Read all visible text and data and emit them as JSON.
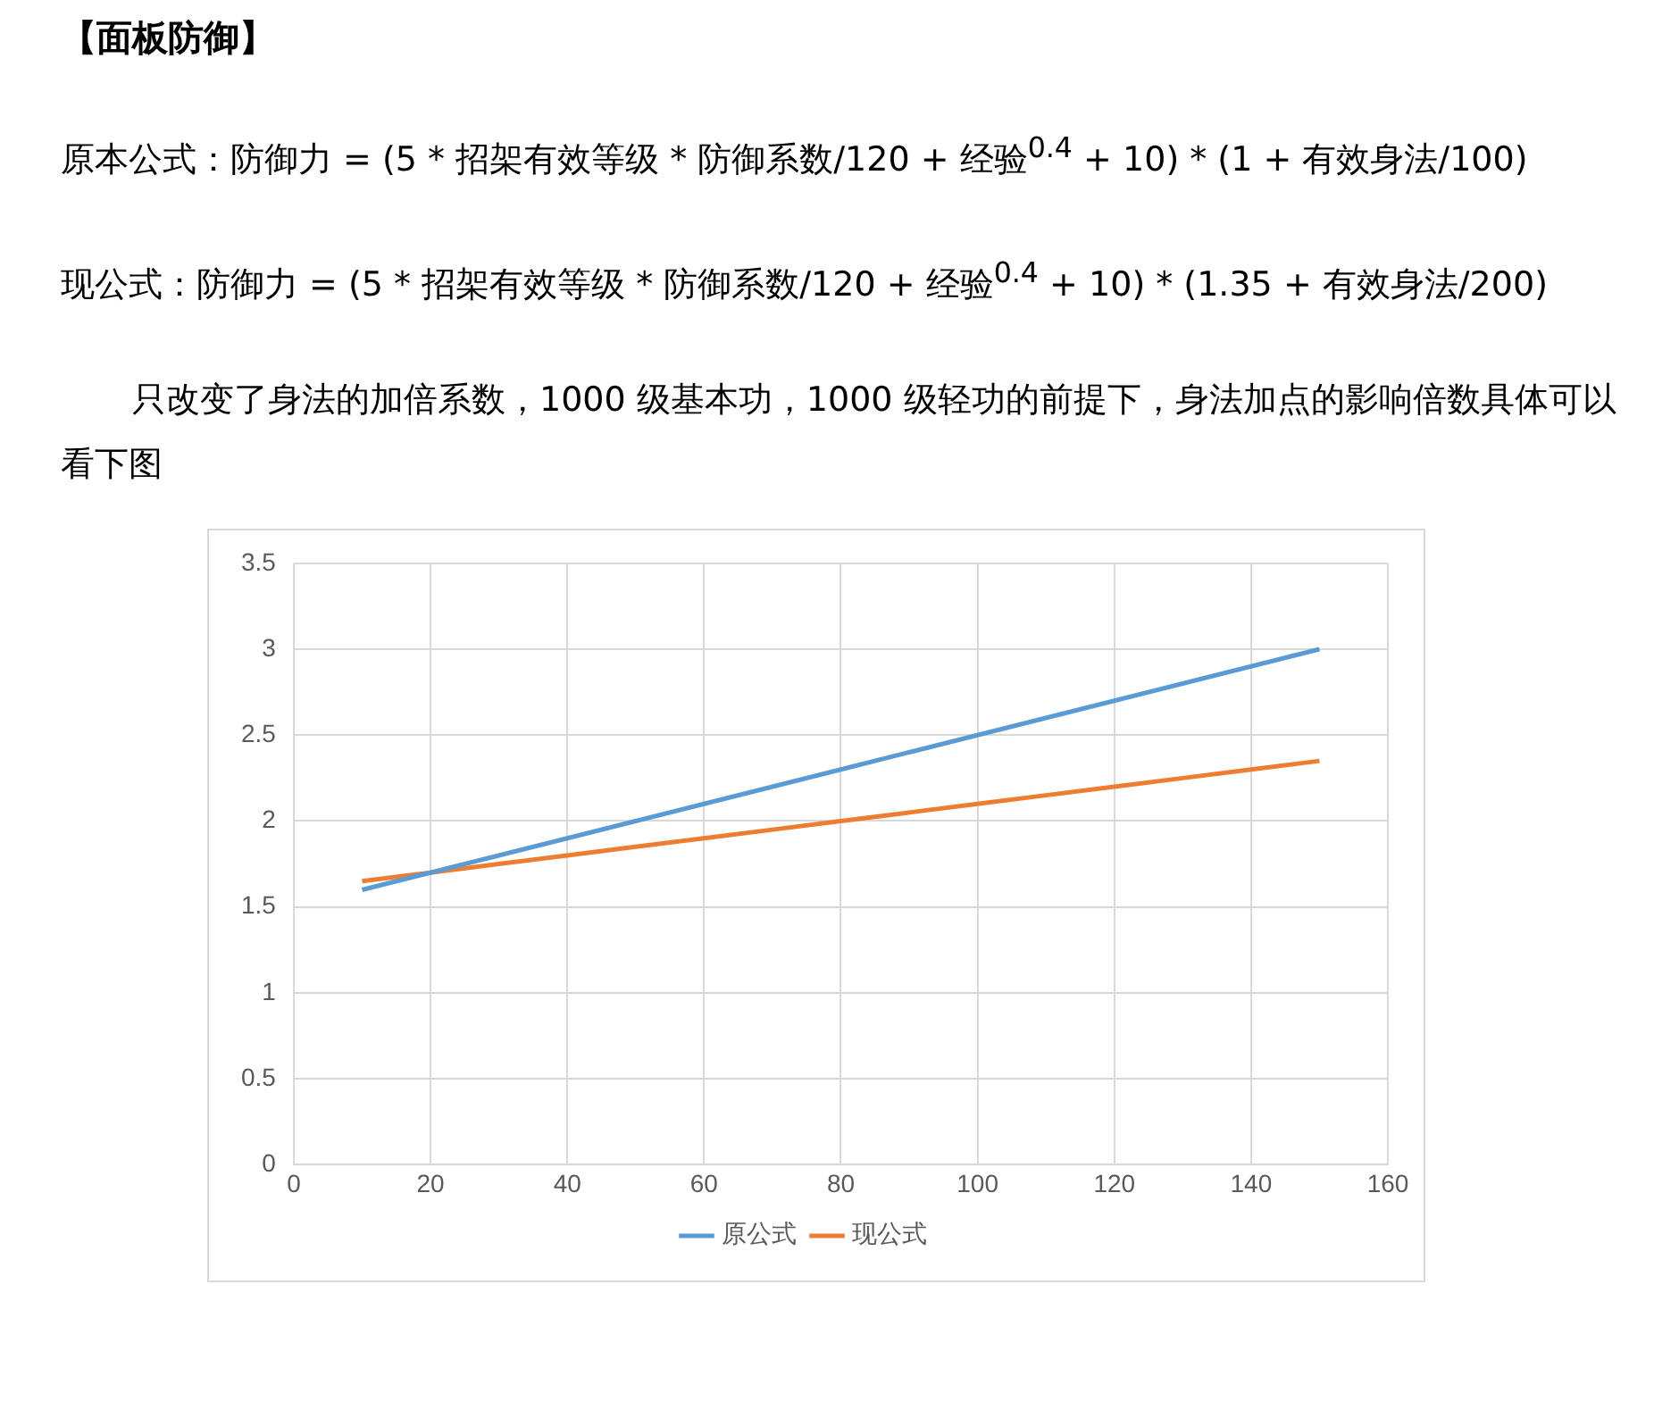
{
  "chart_data": {
    "type": "line",
    "title": "【面板防御】",
    "annotations": [
      "原本公式：防御力 = (5 * 招架有效等级 * 防御系数/120 + 经验$^{0.4}$ + 10) * (1 + 有效身法/100)",
      "现公式：防御力 = (5 * 招架有效等级 * 防御系数/120 + 经验$^{0.4}$ + 10) * (1.35 + 有效身法/200)",
      "只改变了身法的加倍系数，1000 级基本功，1000 级轻功的前提下，身法加点的影响倍数具体可以看下图"
    ],
    "x": [
      10,
      20,
      30,
      40,
      50,
      60,
      70,
      80,
      90,
      100,
      110,
      120,
      130,
      140,
      150
    ],
    "series": [
      {
        "name": "原公式",
        "color": "#5b9bd5",
        "values": [
          1.6,
          1.7,
          1.8,
          1.9,
          2.0,
          2.1,
          2.2,
          2.3,
          2.4,
          2.5,
          2.6,
          2.7,
          2.8,
          2.9,
          3.0
        ]
      },
      {
        "name": "现公式",
        "color": "#ed7d31",
        "values": [
          1.65,
          1.7,
          1.75,
          1.8,
          1.85,
          1.9,
          1.95,
          2.0,
          2.05,
          2.1,
          2.15,
          2.2,
          2.25,
          2.3,
          2.35
        ]
      }
    ],
    "xlim": [
      0,
      160
    ],
    "xticks": [
      0,
      20,
      40,
      60,
      80,
      100,
      120,
      140,
      160
    ],
    "ylim": [
      0,
      3.5
    ],
    "yticks": [
      0,
      0.5,
      1,
      1.5,
      2,
      2.5,
      3,
      3.5
    ],
    "grid": true,
    "legend": "bottom",
    "marker": "none",
    "line_style": "solid"
  }
}
